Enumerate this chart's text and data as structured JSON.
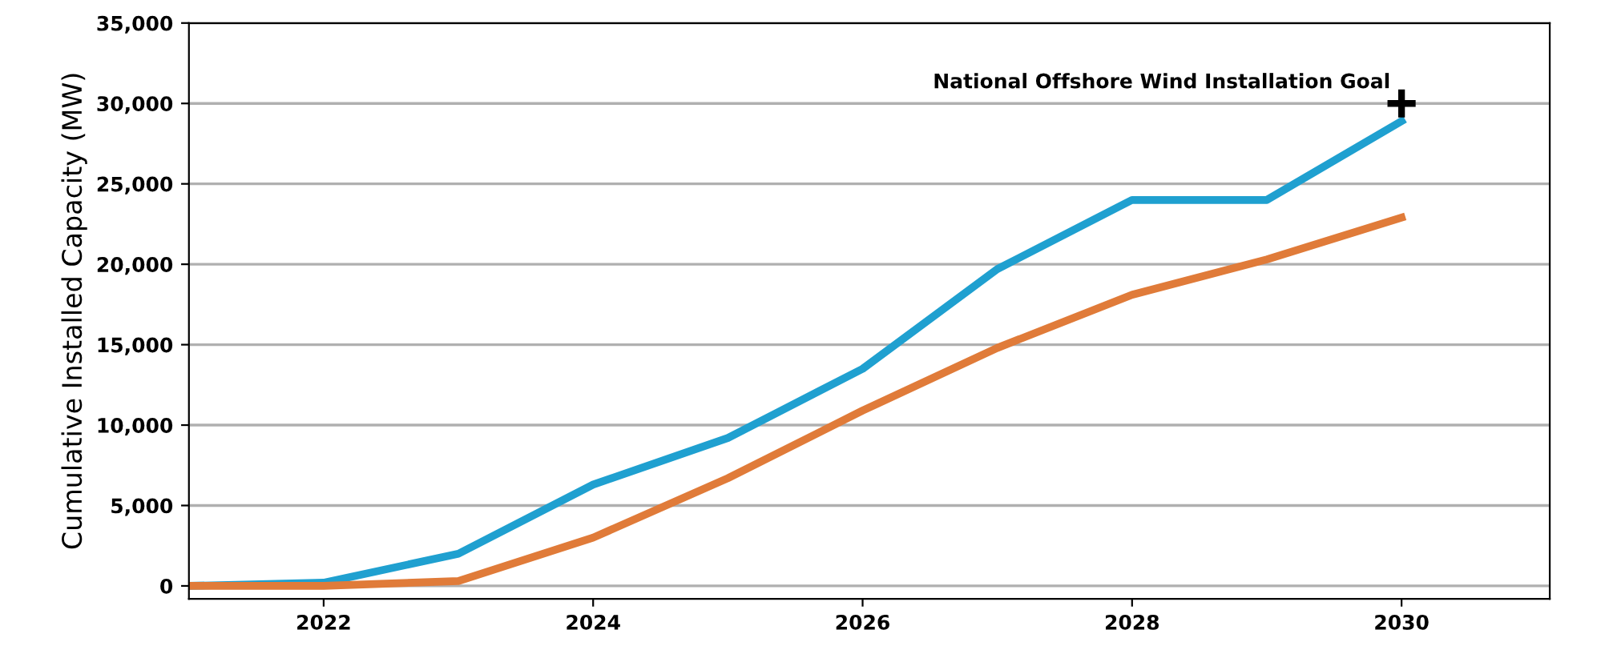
{
  "chart_data": {
    "type": "line",
    "ylabel": "Cumulative Installed Capacity (MW)",
    "x": [
      2021,
      2022,
      2023,
      2024,
      2025,
      2026,
      2027,
      2028,
      2029,
      2030
    ],
    "series": [
      {
        "color": "#1fa0d0",
        "values": [
          0,
          200,
          2000,
          6300,
          9200,
          13500,
          19700,
          24000,
          24000,
          28900
        ]
      },
      {
        "color": "#e07b39",
        "values": [
          0,
          0,
          300,
          3000,
          6700,
          10900,
          14800,
          18100,
          20300,
          22900
        ]
      },
      {
        "type": "scatter",
        "marker": "cross",
        "color": "#000000",
        "x": [
          2030
        ],
        "values": [
          30000
        ]
      }
    ],
    "annotations": [
      {
        "text": "National Offshore Wind Installation Goal",
        "x": 2030,
        "y": 30000
      }
    ],
    "xlim": [
      2021,
      2031.1
    ],
    "xticks": [
      2022,
      2024,
      2026,
      2028,
      2030
    ],
    "ylim": [
      -800,
      35000
    ],
    "yticks": [
      {
        "value": 0,
        "label": "0"
      },
      {
        "value": 5000,
        "label": "5,000"
      },
      {
        "value": 10000,
        "label": "10,000"
      },
      {
        "value": 15000,
        "label": "15,000"
      },
      {
        "value": 20000,
        "label": "20,000"
      },
      {
        "value": 25000,
        "label": "25,000"
      },
      {
        "value": 30000,
        "label": "30,000"
      },
      {
        "value": 35000,
        "label": "35,000"
      }
    ],
    "grid": "y",
    "legend": false
  }
}
